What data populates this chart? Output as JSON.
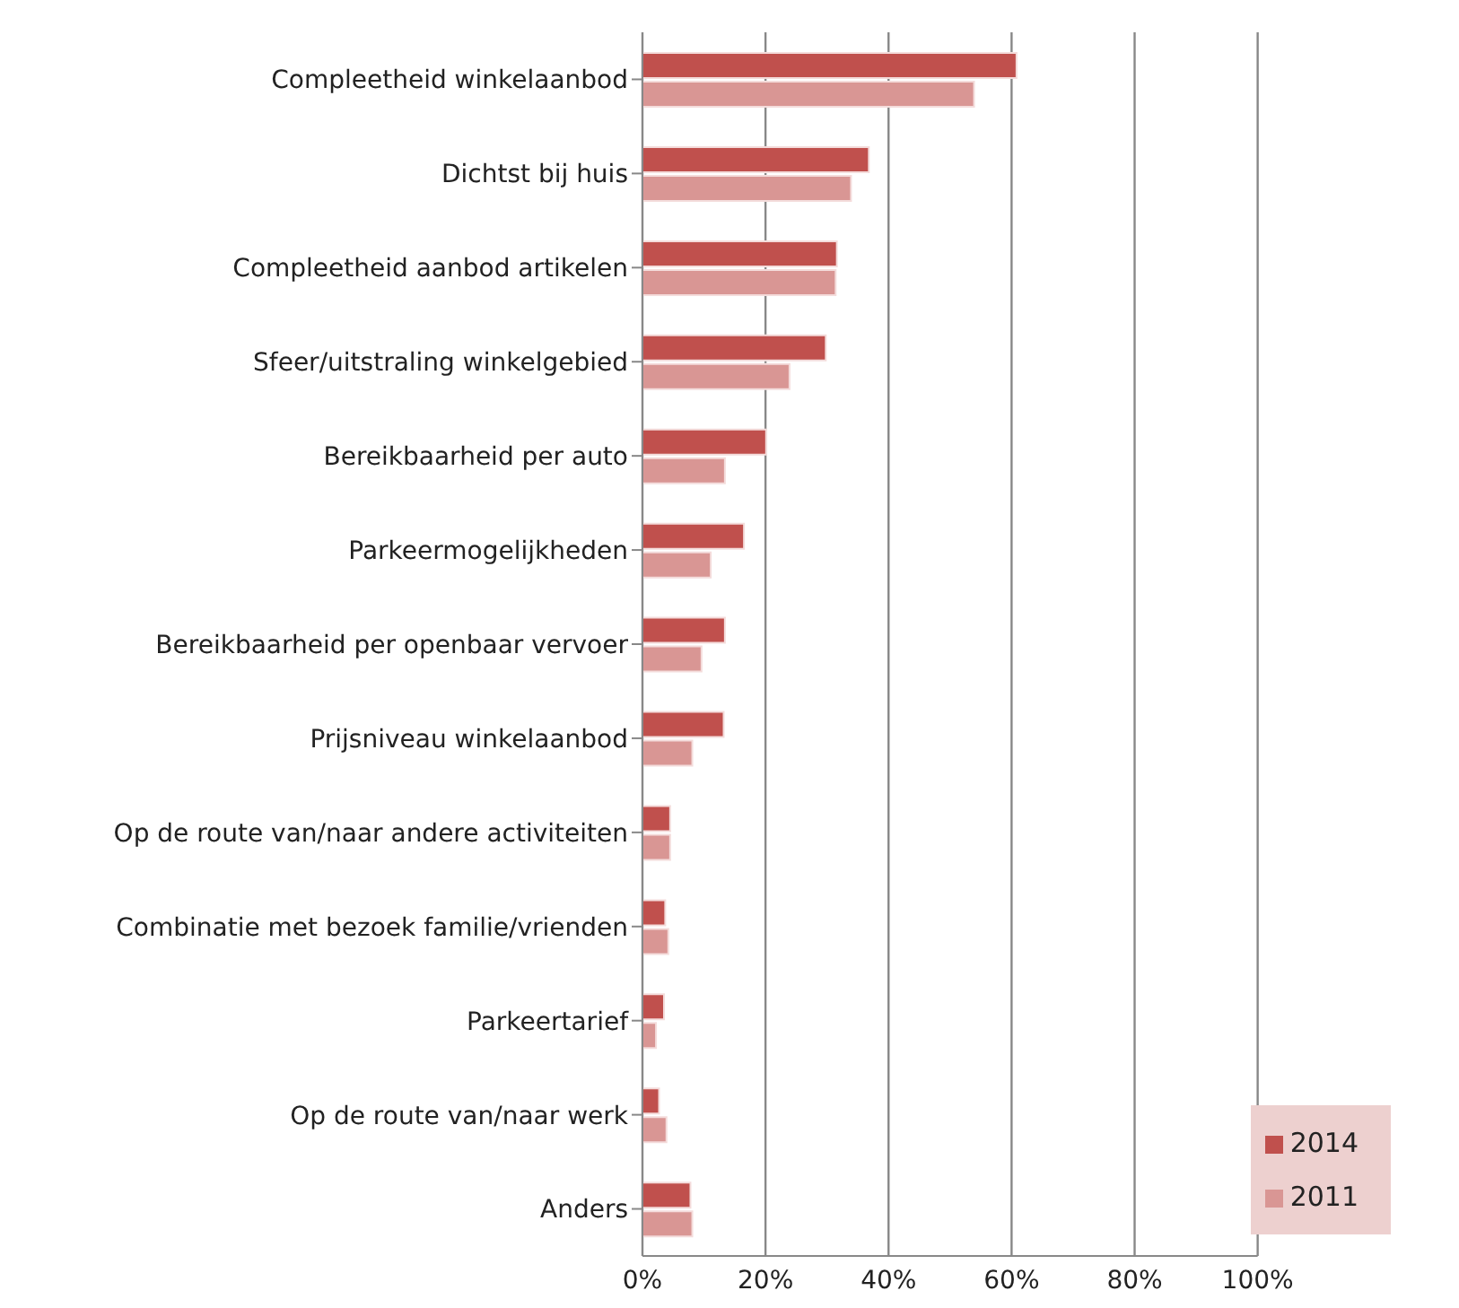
{
  "chart_data": {
    "type": "bar",
    "orientation": "horizontal",
    "categories": [
      "Compleetheid winkelaanbod",
      "Dichtst bij huis",
      "Compleetheid aanbod artikelen",
      "Sfeer/uitstraling winkelgebied",
      "Bereikbaarheid per auto",
      "Parkeermogelijkheden",
      "Bereikbaarheid per openbaar vervoer",
      "Prijsniveau winkelaanbod",
      "Op de route van/naar andere activiteiten",
      "Combinatie met bezoek familie/vrienden",
      "Parkeertarief",
      "Op de route van/naar werk",
      "Anders"
    ],
    "series": [
      {
        "name": "2014",
        "color": "#c0504d",
        "values": [
          60.8,
          36.8,
          31.6,
          29.8,
          20.1,
          16.5,
          13.4,
          13.2,
          4.5,
          3.7,
          3.5,
          2.7,
          7.8
        ]
      },
      {
        "name": "2011",
        "color": "#d99694",
        "values": [
          53.9,
          33.9,
          31.4,
          23.9,
          13.4,
          11.1,
          9.6,
          8.1,
          4.5,
          4.2,
          2.2,
          3.9,
          8.1
        ]
      }
    ],
    "xlim": [
      0,
      100
    ],
    "xticks": [
      {
        "value": 0,
        "label": "0%"
      },
      {
        "value": 20,
        "label": "20%"
      },
      {
        "value": 40,
        "label": "40%"
      },
      {
        "value": 60,
        "label": "60%"
      },
      {
        "value": 80,
        "label": "80%"
      },
      {
        "value": 100,
        "label": "100%"
      }
    ],
    "grid": "x",
    "legend": "bottom right"
  }
}
